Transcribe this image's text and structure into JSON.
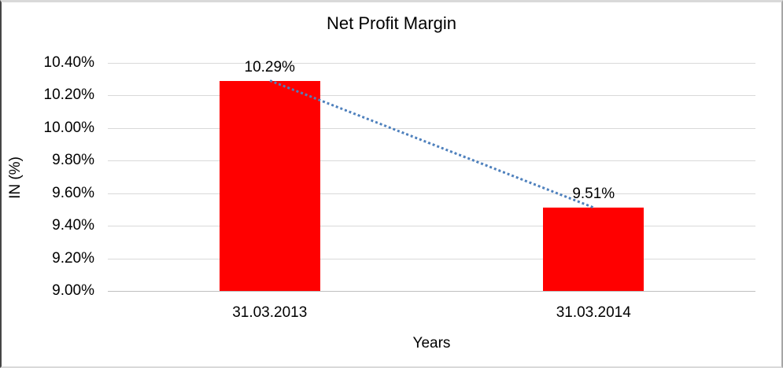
{
  "chart_data": {
    "type": "bar",
    "title": "Net Profit Margin",
    "xlabel": "Years",
    "ylabel": "IN (%)",
    "categories": [
      "31.03.2013",
      "31.03.2014"
    ],
    "series": [
      {
        "name": "Net Profit Margin",
        "values": [
          10.29,
          9.51
        ]
      }
    ],
    "data_labels": [
      "10.29%",
      "9.51%"
    ],
    "ylim": [
      9.0,
      10.4
    ],
    "ytick_step": 0.2,
    "ytick_labels": [
      "9.00%",
      "9.20%",
      "9.40%",
      "9.60%",
      "9.80%",
      "10.00%",
      "10.20%",
      "10.40%"
    ],
    "grid": true,
    "legend": "none",
    "colors": {
      "bar": "#ff0000",
      "trendline": "#4f81bd",
      "gridline": "#d9d9d9",
      "axis_line": "#bfbfbf",
      "text": "#000000"
    },
    "trendline_style": "dotted"
  }
}
